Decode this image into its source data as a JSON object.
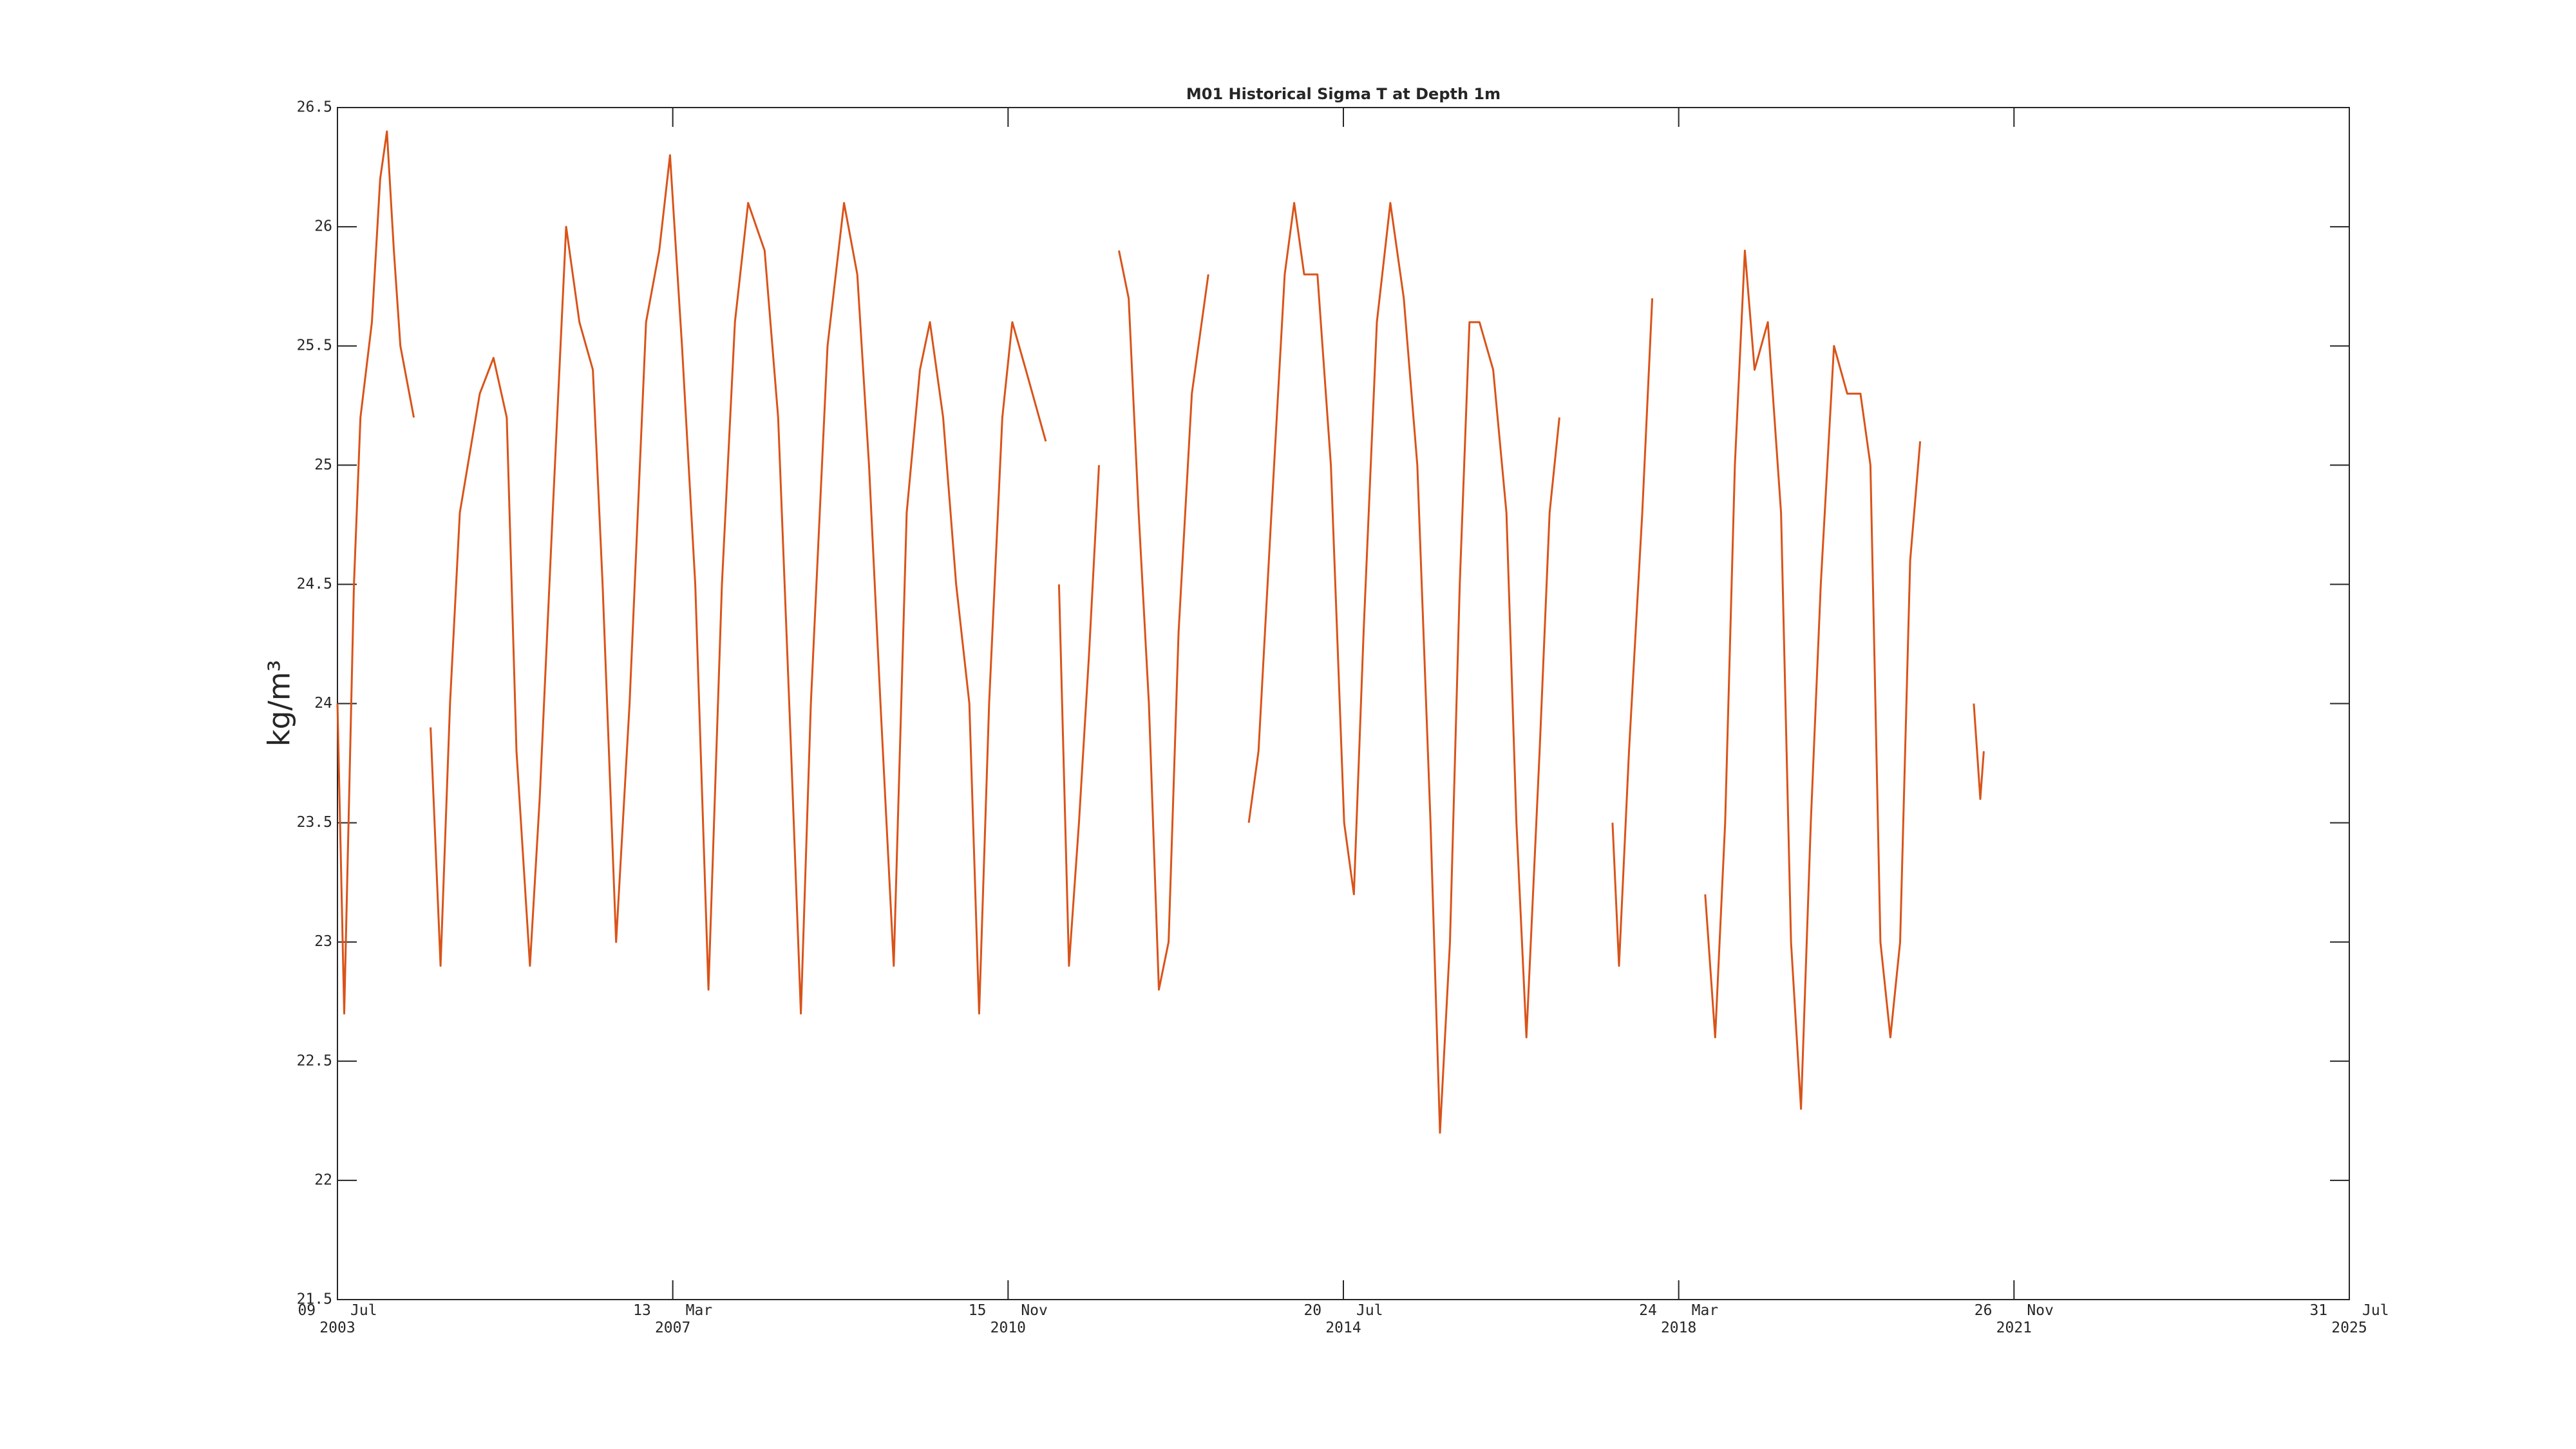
{
  "chart_data": {
    "type": "line",
    "title": "M01 Historical Sigma T at Depth 1m",
    "ylabel": "kg/m³",
    "xlim": [
      "2003-07-09",
      "2025-07-31"
    ],
    "xticks": [
      {
        "value": "2003-07-09",
        "label": "09 Jul 2003"
      },
      {
        "value": "2007-03-13",
        "label": "13 Mar 2007"
      },
      {
        "value": "2010-11-15",
        "label": "15 Nov 2010"
      },
      {
        "value": "2014-07-20",
        "label": "20 Jul 2014"
      },
      {
        "value": "2018-03-24",
        "label": "24 Mar 2018"
      },
      {
        "value": "2021-11-26",
        "label": "26 Nov 2021"
      },
      {
        "value": "2025-07-31",
        "label": "31 Jul 2025"
      }
    ],
    "ylim": [
      21.5,
      26.5
    ],
    "yticks": [
      21.5,
      22,
      22.5,
      23,
      23.5,
      24,
      24.5,
      25,
      25.5,
      26,
      26.5
    ],
    "grid": false,
    "x": [
      "2003-07-09",
      "2003-08-05",
      "2003-09-13",
      "2003-10-09",
      "2003-11-24",
      "2003-12-27",
      "2004-01-23",
      "2004-02-20",
      "2004-03-17",
      "2004-05-10",
      "2004-06-10",
      "2004-07-16",
      "2004-08-25",
      "2004-10-02",
      "2004-11-10",
      "2005-01-29",
      "2005-03-25",
      "2005-05-17",
      "2005-06-25",
      "2005-08-18",
      "2005-09-26",
      "2005-11-17",
      "2006-01-10",
      "2006-03-04",
      "2006-04-27",
      "2006-06-05",
      "2006-07-29",
      "2006-09-21",
      "2006-11-26",
      "2007-01-18",
      "2007-03-02",
      "2007-04-19",
      "2007-06-11",
      "2007-08-03",
      "2007-09-26",
      "2007-11-17",
      "2008-01-09",
      "2008-03-15",
      "2008-05-08",
      "2008-06-29",
      "2008-08-07",
      "2008-09-16",
      "2008-11-22",
      "2009-01-27",
      "2009-03-21",
      "2009-05-07",
      "2009-06-22",
      "2009-08-14",
      "2009-10-05",
      "2009-11-27",
      "2010-01-06",
      "2010-02-28",
      "2010-04-21",
      "2010-06-13",
      "2010-07-22",
      "2010-08-31",
      "2010-10-23",
      "2010-12-02",
      "2011-01-25",
      "2011-04-15",
      "2011-05-10",
      "2011-06-07",
      "2011-07-17",
      "2011-08-26",
      "2011-10-05",
      "2011-11-14",
      "2011-12-20",
      "2012-02-02",
      "2012-03-12",
      "2012-04-21",
      "2012-06-01",
      "2012-07-11",
      "2012-08-19",
      "2012-09-28",
      "2012-11-20",
      "2013-01-25",
      "2013-04-15",
      "2013-07-06",
      "2013-08-14",
      "2013-10-05",
      "2013-11-27",
      "2014-01-04",
      "2014-02-13",
      "2014-04-07",
      "2014-05-31",
      "2014-07-23",
      "2014-08-31",
      "2014-10-09",
      "2014-12-01",
      "2015-01-24",
      "2015-03-19",
      "2015-05-12",
      "2015-07-04",
      "2015-08-11",
      "2015-09-20",
      "2015-10-29",
      "2015-12-07",
      "2016-01-16",
      "2016-03-11",
      "2016-05-03",
      "2016-06-12",
      "2016-07-22",
      "2016-09-13",
      "2016-10-23",
      "2016-12-01",
      "2017-03-15",
      "2017-07-02",
      "2017-07-28",
      "2017-09-06",
      "2017-10-29",
      "2017-12-08",
      "2018-03-20",
      "2018-07-08",
      "2018-08-17",
      "2018-09-26",
      "2018-11-04",
      "2018-12-14",
      "2019-01-22",
      "2019-03-16",
      "2019-05-08",
      "2019-06-17",
      "2019-07-27",
      "2019-09-04",
      "2019-10-14",
      "2019-12-06",
      "2020-01-28",
      "2020-03-21",
      "2020-04-30",
      "2020-06-09",
      "2020-07-19",
      "2020-08-27",
      "2020-10-06",
      "2020-11-15",
      "2021-03-01",
      "2021-06-18",
      "2021-07-14",
      "2021-07-28"
    ],
    "series": [
      {
        "name": "Sigma T",
        "color": "#d95319",
        "values": [
          24.0,
          22.7,
          24.5,
          25.2,
          25.6,
          26.2,
          26.4,
          25.9,
          25.5,
          25.2,
          null,
          23.9,
          22.9,
          24.0,
          24.8,
          25.3,
          25.45,
          25.2,
          23.8,
          22.9,
          23.6,
          24.8,
          26.0,
          25.6,
          25.4,
          24.5,
          23.0,
          24.0,
          25.6,
          25.9,
          26.3,
          25.5,
          24.5,
          22.8,
          24.5,
          25.6,
          26.1,
          25.9,
          25.2,
          23.8,
          22.7,
          24.0,
          25.5,
          26.1,
          25.8,
          25.0,
          24.0,
          22.9,
          24.8,
          25.4,
          25.6,
          25.2,
          24.5,
          24.0,
          22.7,
          24.0,
          25.2,
          25.6,
          25.4,
          25.1,
          null,
          24.5,
          22.9,
          23.5,
          24.2,
          25.0,
          null,
          25.9,
          25.7,
          24.8,
          24.0,
          22.8,
          23.0,
          24.3,
          25.3,
          25.8,
          null,
          23.5,
          23.8,
          24.8,
          25.8,
          26.1,
          25.8,
          25.8,
          25.0,
          23.5,
          23.2,
          24.3,
          25.6,
          26.1,
          25.7,
          25.0,
          23.5,
          22.2,
          23.0,
          24.5,
          25.6,
          25.6,
          25.4,
          24.8,
          23.5,
          22.6,
          23.8,
          24.8,
          25.2,
          null,
          23.5,
          22.9,
          23.8,
          24.8,
          25.7,
          null,
          23.2,
          22.6,
          23.5,
          25.0,
          25.9,
          25.4,
          25.6,
          24.8,
          23.0,
          22.3,
          23.5,
          24.5,
          25.5,
          25.3,
          25.3,
          25.0,
          23.0,
          22.6,
          23.0,
          24.6,
          25.1,
          null,
          24.0,
          23.6,
          23.8
        ]
      }
    ]
  }
}
